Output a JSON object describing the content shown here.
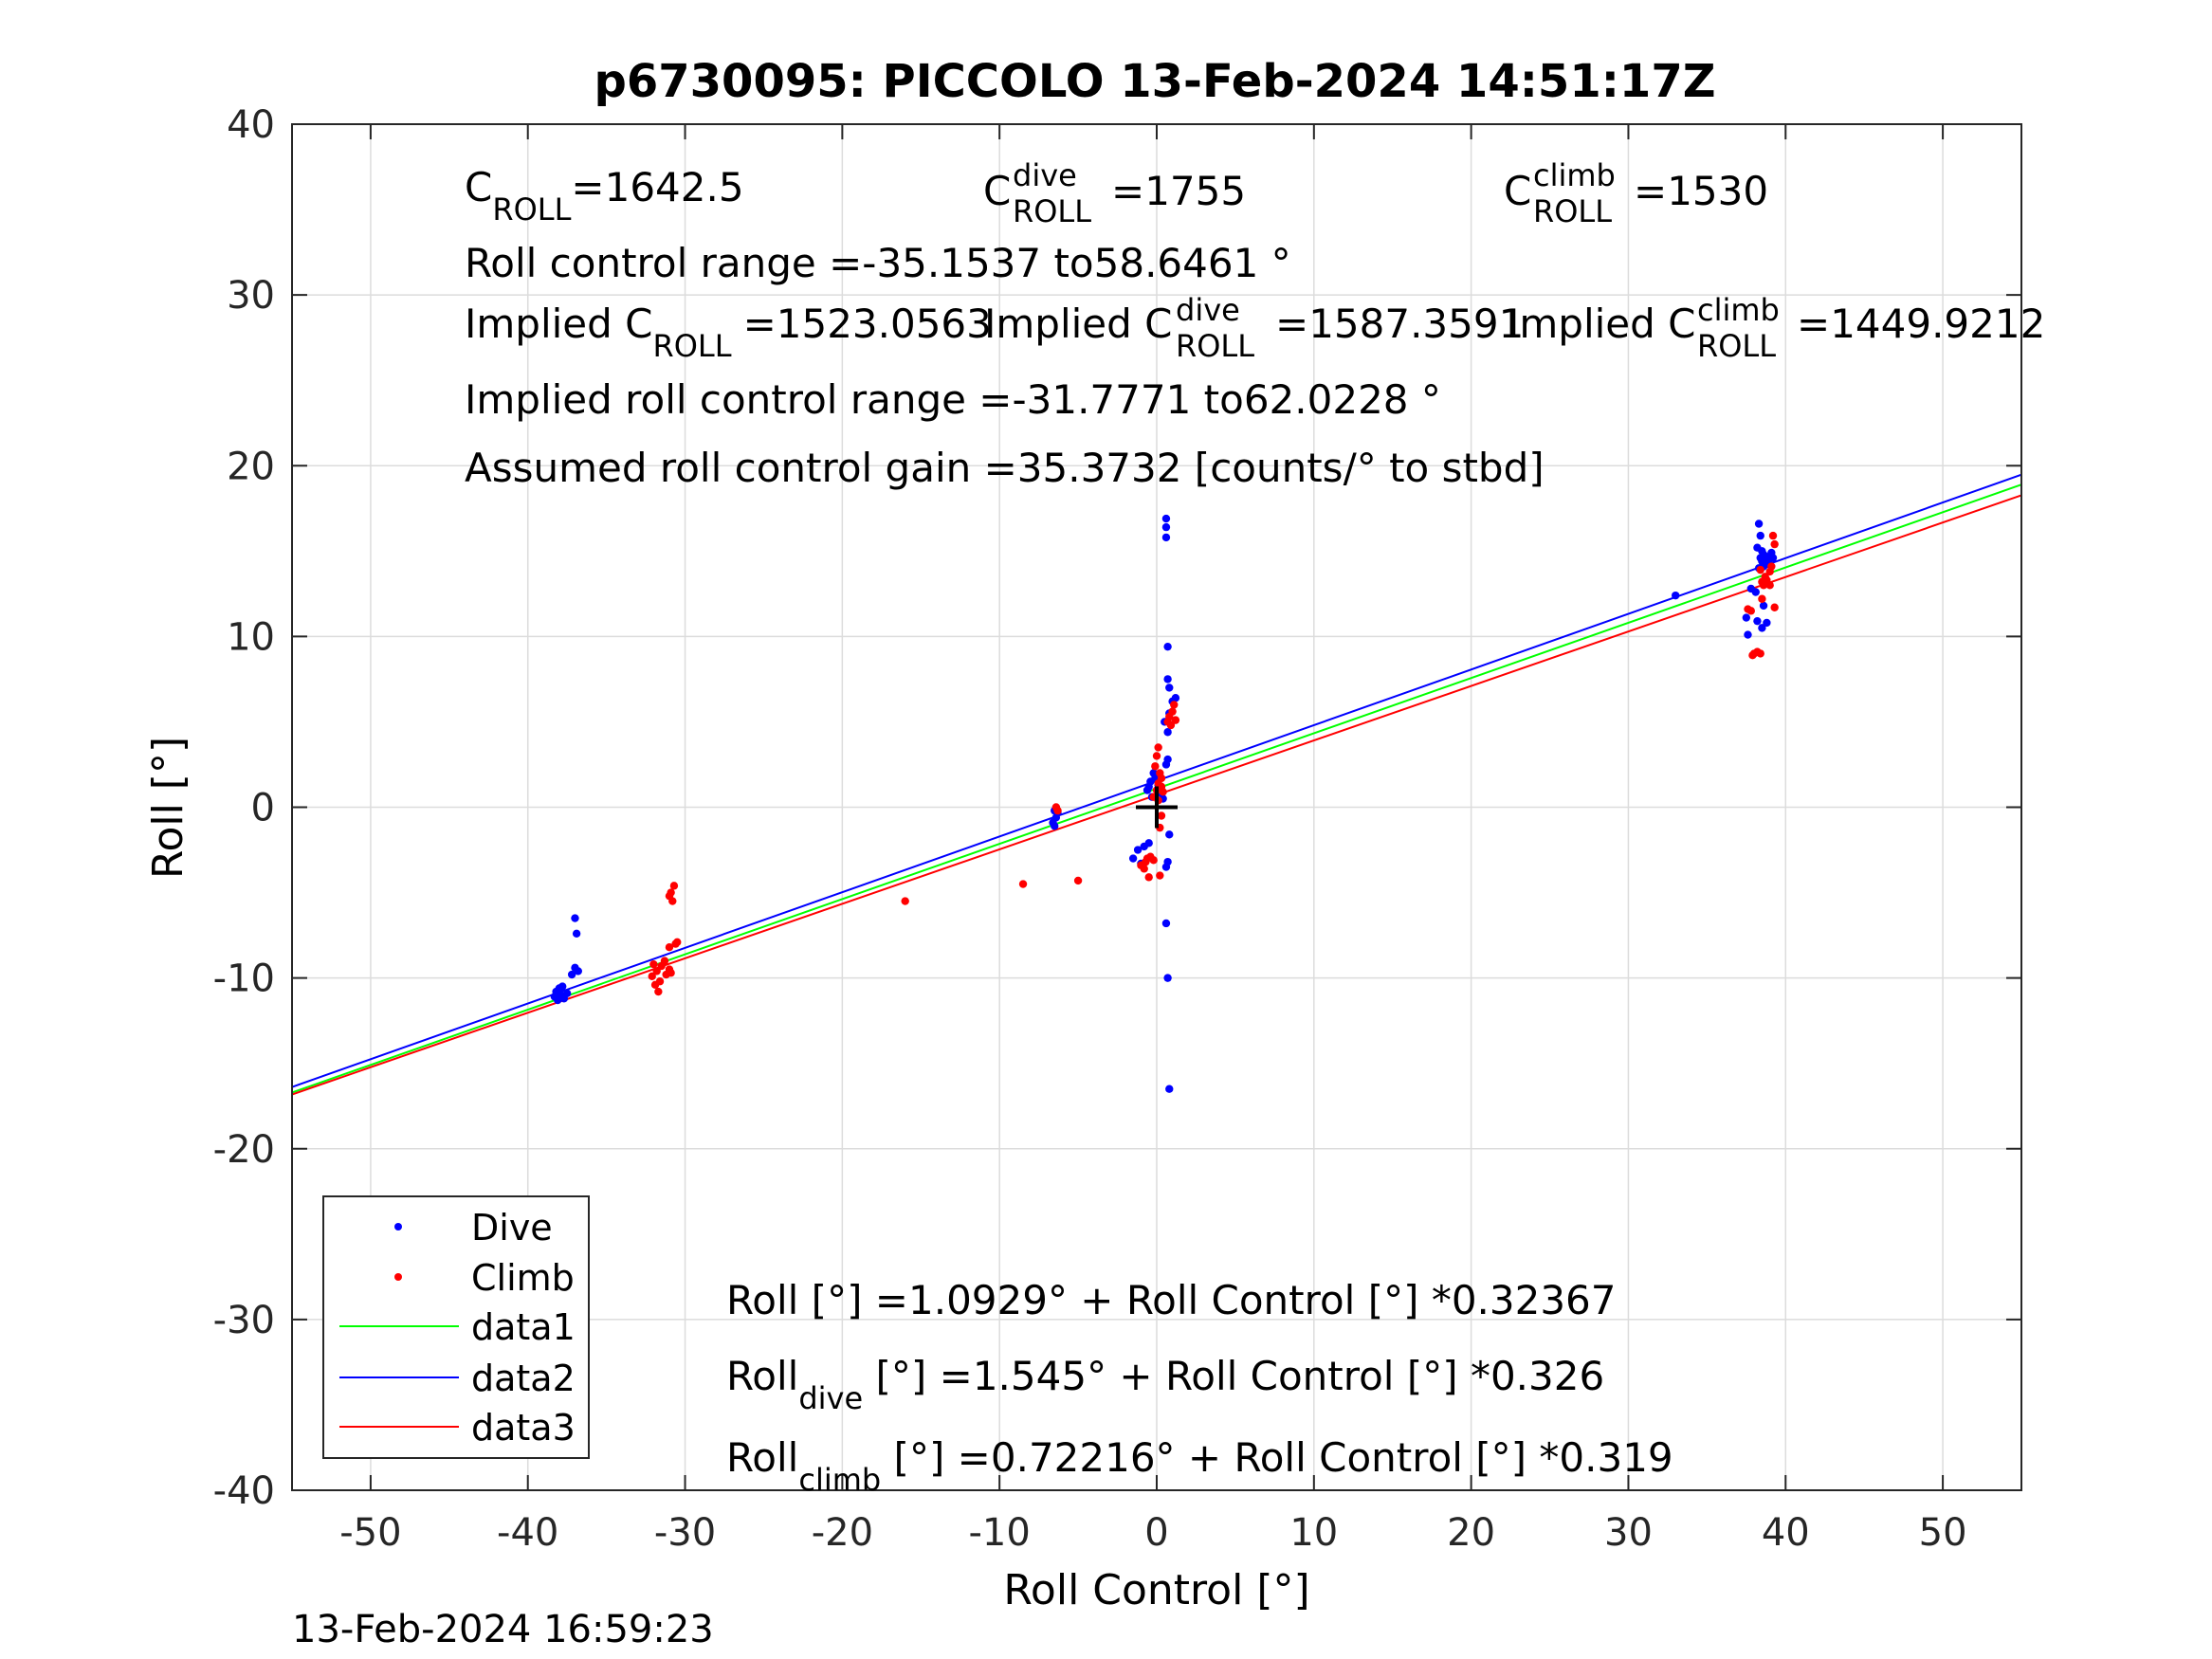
{
  "title": "p6730095: PICCOLO 13-Feb-2024 14:51:17Z",
  "footer_timestamp": "13-Feb-2024 16:59:23",
  "annotations": {
    "c_roll": {
      "base": "C",
      "sub": "ROLL",
      "value": "=1642.5"
    },
    "c_roll_dive": {
      "base": "C",
      "sup": "dive",
      "sub": "ROLL",
      "value": "=1755"
    },
    "c_roll_climb": {
      "base": "C",
      "sup": "climb",
      "sub": "ROLL",
      "value": "=1530"
    },
    "roll_control_range": "Roll control range =-35.1537 to58.6461 °",
    "implied_c_roll": {
      "prefix": "Implied C",
      "sub": "ROLL",
      "value": "=1523.0563"
    },
    "implied_c_roll_dive": {
      "prefix": "Implied C",
      "sup": "dive",
      "sub": "ROLL",
      "value": "=1587.3591"
    },
    "implied_c_roll_climb": {
      "prefix": "Implied C",
      "sup": "climb",
      "sub": "ROLL",
      "value": "=1449.9212"
    },
    "implied_roll_control_range": "Implied roll control range =-31.7771 to62.0228 °",
    "assumed_gain": "Assumed roll control gain =35.3732 [counts/° to stbd]",
    "fit_all": "Roll [°] =1.0929° + Roll Control [°] *0.32367",
    "fit_dive": {
      "base": "Roll",
      "sub": "dive",
      "rest": " [°] =1.545° + Roll Control [°] *0.326"
    },
    "fit_climb": {
      "base": "Roll",
      "sub": "climb",
      "rest": " [°] =0.72216° + Roll Control [°] *0.319"
    }
  },
  "chart_data": {
    "type": "scatter",
    "title": "p6730095: PICCOLO 13-Feb-2024 14:51:17Z",
    "xlabel": "Roll Control [°]",
    "ylabel": "Roll [°]",
    "xlim": [
      -55,
      55
    ],
    "ylim": [
      -40,
      40
    ],
    "xticks": [
      -50,
      -40,
      -30,
      -20,
      -10,
      0,
      10,
      20,
      30,
      40,
      50
    ],
    "yticks": [
      -40,
      -30,
      -20,
      -10,
      0,
      10,
      20,
      30,
      40
    ],
    "grid": true,
    "legend_location": "bottom-left",
    "legend": [
      "Dive",
      "Climb",
      "data1",
      "data2",
      "data3"
    ],
    "colors": {
      "dive": "#0000ff",
      "climb": "#ff0000",
      "data1": "#00ff00",
      "data2": "#0000ff",
      "data3": "#ff0000",
      "origin_marker": "#000000"
    },
    "series": [
      {
        "name": "Dive",
        "kind": "points",
        "color": "#0000ff",
        "points": [
          [
            -38.0,
            -10.6
          ],
          [
            -38.2,
            -10.8
          ],
          [
            -37.9,
            -11.0
          ],
          [
            -38.1,
            -11.3
          ],
          [
            -37.8,
            -10.5
          ],
          [
            -37.5,
            -10.9
          ],
          [
            -38.3,
            -11.1
          ],
          [
            -37.7,
            -11.2
          ],
          [
            -37.2,
            -9.8
          ],
          [
            -37.0,
            -9.4
          ],
          [
            -36.9,
            -7.4
          ],
          [
            -37.0,
            -6.5
          ],
          [
            -36.8,
            -9.6
          ],
          [
            -6.5,
            -0.2
          ],
          [
            -6.4,
            -0.6
          ],
          [
            -6.6,
            -0.9
          ],
          [
            -6.3,
            -0.3
          ],
          [
            -6.5,
            -1.1
          ],
          [
            -1.5,
            -3.0
          ],
          [
            -1.2,
            -2.5
          ],
          [
            -0.8,
            -2.3
          ],
          [
            -0.5,
            -2.1
          ],
          [
            -1.0,
            -3.3
          ],
          [
            -0.6,
            1.0
          ],
          [
            -0.4,
            1.5
          ],
          [
            -0.2,
            2.0
          ],
          [
            -0.5,
            1.2
          ],
          [
            0.2,
            1.8
          ],
          [
            0.3,
            0.8
          ],
          [
            -0.3,
            0.6
          ],
          [
            0.1,
            1.3
          ],
          [
            0.4,
            0.5
          ],
          [
            -0.1,
            1.7
          ],
          [
            0.5,
            5.0
          ],
          [
            0.6,
            16.9
          ],
          [
            0.6,
            16.4
          ],
          [
            0.6,
            15.8
          ],
          [
            0.7,
            9.4
          ],
          [
            0.7,
            7.5
          ],
          [
            0.8,
            7.0
          ],
          [
            0.8,
            5.5
          ],
          [
            1.0,
            6.2
          ],
          [
            1.2,
            6.4
          ],
          [
            0.7,
            4.4
          ],
          [
            0.7,
            2.8
          ],
          [
            0.6,
            2.5
          ],
          [
            0.7,
            -3.2
          ],
          [
            0.6,
            -3.5
          ],
          [
            0.8,
            -1.6
          ],
          [
            0.6,
            -6.8
          ],
          [
            0.7,
            -10.0
          ],
          [
            0.8,
            -16.5
          ],
          [
            33.0,
            12.4
          ],
          [
            38.3,
            16.6
          ],
          [
            38.4,
            15.9
          ],
          [
            38.2,
            15.2
          ],
          [
            38.5,
            15.0
          ],
          [
            38.6,
            14.8
          ],
          [
            38.4,
            14.6
          ],
          [
            38.7,
            14.2
          ],
          [
            38.3,
            14.0
          ],
          [
            38.8,
            14.5
          ],
          [
            39.0,
            14.7
          ],
          [
            39.1,
            14.9
          ],
          [
            38.9,
            14.3
          ],
          [
            38.5,
            14.4
          ],
          [
            38.6,
            14.1
          ],
          [
            39.2,
            14.6
          ],
          [
            37.8,
            12.8
          ],
          [
            38.1,
            12.6
          ],
          [
            38.6,
            11.8
          ],
          [
            38.5,
            10.5
          ],
          [
            38.2,
            10.9
          ],
          [
            38.8,
            10.8
          ],
          [
            37.6,
            10.1
          ],
          [
            37.5,
            11.1
          ]
        ]
      },
      {
        "name": "Climb",
        "kind": "points",
        "color": "#ff0000",
        "points": [
          [
            -32.0,
            -9.2
          ],
          [
            -31.8,
            -9.6
          ],
          [
            -32.1,
            -9.9
          ],
          [
            -31.5,
            -9.3
          ],
          [
            -31.2,
            -9.8
          ],
          [
            -31.6,
            -10.2
          ],
          [
            -31.9,
            -10.4
          ],
          [
            -31.0,
            -9.5
          ],
          [
            -31.3,
            -9.0
          ],
          [
            -31.7,
            -10.8
          ],
          [
            -30.9,
            -9.7
          ],
          [
            -31.0,
            -5.2
          ],
          [
            -30.8,
            -5.5
          ],
          [
            -30.7,
            -4.6
          ],
          [
            -30.9,
            -5.0
          ],
          [
            -31.0,
            -8.2
          ],
          [
            -30.5,
            -7.9
          ],
          [
            -30.6,
            -8.0
          ],
          [
            -16.0,
            -5.5
          ],
          [
            -8.5,
            -4.5
          ],
          [
            -5.0,
            -4.3
          ],
          [
            -6.4,
            0.0
          ],
          [
            -6.3,
            -0.2
          ],
          [
            -1.0,
            -3.4
          ],
          [
            -0.7,
            -3.2
          ],
          [
            -0.6,
            -3.0
          ],
          [
            -0.8,
            -3.6
          ],
          [
            -0.5,
            -4.1
          ],
          [
            0.2,
            -4.0
          ],
          [
            -0.2,
            -3.1
          ],
          [
            -0.4,
            -2.9
          ],
          [
            -0.2,
            0.6
          ],
          [
            0.0,
            1.0
          ],
          [
            0.1,
            1.4
          ],
          [
            0.2,
            2.0
          ],
          [
            0.3,
            1.7
          ],
          [
            0.1,
            0.4
          ],
          [
            0.0,
            3.0
          ],
          [
            0.1,
            3.5
          ],
          [
            -0.1,
            2.4
          ],
          [
            0.3,
            1.2
          ],
          [
            0.4,
            0.9
          ],
          [
            0.8,
            5.3
          ],
          [
            1.0,
            5.6
          ],
          [
            1.1,
            6.0
          ],
          [
            1.2,
            5.1
          ],
          [
            0.9,
            4.8
          ],
          [
            0.7,
            5.0
          ],
          [
            0.3,
            -0.5
          ],
          [
            0.2,
            -1.2
          ],
          [
            37.6,
            11.6
          ],
          [
            37.8,
            11.5
          ],
          [
            38.0,
            9.0
          ],
          [
            38.2,
            9.1
          ],
          [
            38.4,
            9.0
          ],
          [
            37.9,
            8.9
          ],
          [
            38.5,
            13.2
          ],
          [
            38.7,
            13.5
          ],
          [
            39.0,
            13.8
          ],
          [
            38.8,
            13.3
          ],
          [
            39.1,
            14.1
          ],
          [
            38.6,
            13.0
          ],
          [
            39.2,
            15.9
          ],
          [
            39.3,
            15.4
          ],
          [
            38.4,
            13.9
          ],
          [
            39.0,
            13.0
          ],
          [
            39.3,
            11.7
          ],
          [
            38.5,
            12.2
          ]
        ]
      },
      {
        "name": "data1",
        "kind": "line",
        "color": "#00ff00",
        "intercept": 1.0929,
        "slope": 0.32367
      },
      {
        "name": "data2",
        "kind": "line",
        "color": "#0000ff",
        "intercept": 1.545,
        "slope": 0.326
      },
      {
        "name": "data3",
        "kind": "line",
        "color": "#ff0000",
        "intercept": 0.72216,
        "slope": 0.319
      }
    ],
    "origin_marker": [
      0,
      0
    ]
  }
}
